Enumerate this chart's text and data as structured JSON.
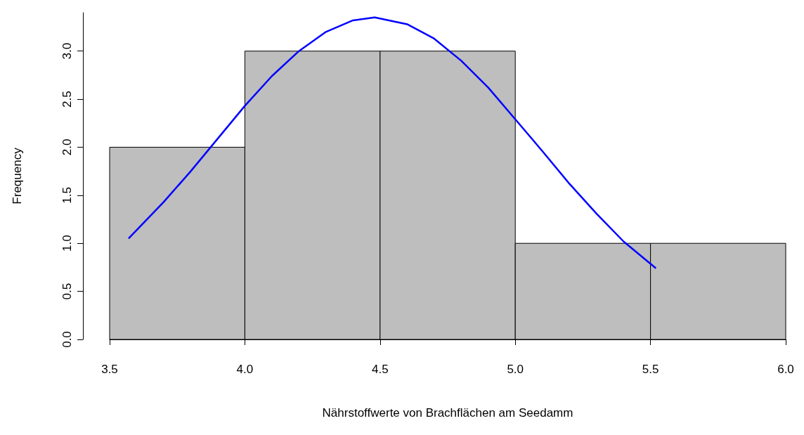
{
  "chart_data": {
    "type": "histogram",
    "xlabel": "Nährstoffwerte von Brachflächen am Seedamm",
    "ylabel": "Frequency",
    "bins": [
      3.5,
      4.0,
      4.5,
      5.0,
      5.5,
      6.0
    ],
    "values": [
      2,
      3,
      3,
      1,
      1
    ],
    "color": "#bebebe",
    "series": [
      {
        "type": "line",
        "color": "#0000ff",
        "x": [
          3.57,
          3.7,
          3.8,
          3.9,
          4.0,
          4.1,
          4.2,
          4.3,
          4.4,
          4.48,
          4.6,
          4.7,
          4.8,
          4.9,
          5.0,
          5.1,
          5.2,
          5.3,
          5.4,
          5.52
        ],
        "values": [
          1.05,
          1.43,
          1.75,
          2.09,
          2.43,
          2.74,
          3.0,
          3.2,
          3.32,
          3.35,
          3.28,
          3.13,
          2.9,
          2.62,
          2.29,
          1.96,
          1.62,
          1.31,
          1.02,
          0.74
        ]
      }
    ],
    "xlim": [
      3.5,
      6.0
    ],
    "xticks": [
      {
        "value": 3.5,
        "label": "3.5"
      },
      {
        "value": 4.0,
        "label": "4.0"
      },
      {
        "value": 4.5,
        "label": "4.5"
      },
      {
        "value": 5.0,
        "label": "5.0"
      },
      {
        "value": 5.5,
        "label": "5.5"
      },
      {
        "value": 6.0,
        "label": "6.0"
      }
    ],
    "ylim": [
      0,
      3.4
    ],
    "yticks": [
      {
        "value": 0,
        "label": "0.0"
      },
      {
        "value": 0.5,
        "label": "0.5"
      },
      {
        "value": 1.0,
        "label": "1.0"
      },
      {
        "value": 1.5,
        "label": "1.5"
      },
      {
        "value": 2.0,
        "label": "2.0"
      },
      {
        "value": 2.5,
        "label": "2.5"
      },
      {
        "value": 3.0,
        "label": "3.0"
      }
    ],
    "grid": false,
    "marker": "none",
    "line_style": "solid"
  }
}
